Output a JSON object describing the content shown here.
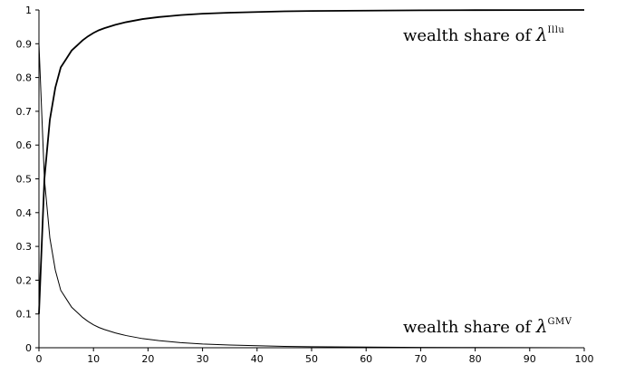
{
  "chart_data": {
    "type": "line",
    "title": "",
    "xlabel": "",
    "ylabel": "",
    "xlim": [
      0,
      100
    ],
    "ylim": [
      0,
      1
    ],
    "x_ticks": [
      "0",
      "10",
      "20",
      "30",
      "40",
      "50",
      "60",
      "70",
      "80",
      "90",
      "100"
    ],
    "y_ticks": [
      "0",
      "0.1",
      "0.2",
      "0.3",
      "0.4",
      "0.5",
      "0.6",
      "0.7",
      "0.8",
      "0.9",
      "1"
    ],
    "grid": false,
    "legend": "none",
    "x": [
      0,
      1,
      2,
      3,
      4,
      5,
      6,
      7,
      8,
      9,
      10,
      11,
      12,
      13,
      14,
      15,
      16,
      17,
      18,
      19,
      20,
      22,
      24,
      26,
      28,
      30,
      35,
      40,
      45,
      50,
      60,
      70,
      80,
      90,
      100
    ],
    "series": [
      {
        "key": "illu",
        "color": "#000000",
        "values": [
          0.1,
          0.5,
          0.675,
          0.77,
          0.83,
          0.855,
          0.88,
          0.895,
          0.91,
          0.922,
          0.932,
          0.94,
          0.946,
          0.951,
          0.956,
          0.96,
          0.964,
          0.967,
          0.97,
          0.973,
          0.975,
          0.979,
          0.982,
          0.985,
          0.987,
          0.989,
          0.992,
          0.994,
          0.996,
          0.997,
          0.998,
          0.999,
          0.9995,
          0.9997,
          1.0
        ]
      },
      {
        "key": "gmv",
        "color": "#000000",
        "values": [
          0.9,
          0.5,
          0.325,
          0.23,
          0.17,
          0.145,
          0.12,
          0.105,
          0.09,
          0.078,
          0.068,
          0.06,
          0.054,
          0.049,
          0.044,
          0.04,
          0.036,
          0.033,
          0.03,
          0.027,
          0.025,
          0.021,
          0.018,
          0.015,
          0.013,
          0.011,
          0.008,
          0.006,
          0.004,
          0.003,
          0.002,
          0.001,
          0.0005,
          0.0003,
          0.0
        ]
      }
    ],
    "annotations": [
      {
        "key": "illu",
        "prefix": "wealth share of ",
        "symbol": "λ",
        "superscript": "Illu"
      },
      {
        "key": "gmv",
        "prefix": "wealth share of ",
        "symbol": "λ",
        "superscript": "GMV"
      }
    ]
  }
}
